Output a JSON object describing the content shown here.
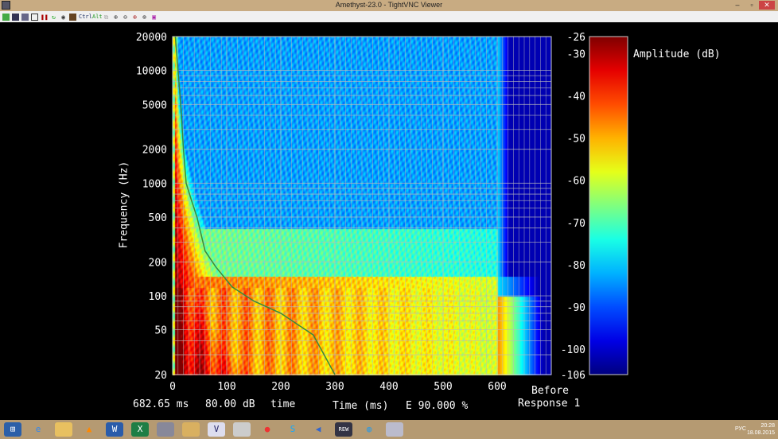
{
  "window": {
    "title": "Amethyst-23.0 - TightVNC Viewer",
    "minimize": "–",
    "maximize": "▫",
    "close": "✕"
  },
  "toolbar": {
    "icons": [
      "new-connection-icon",
      "save-icon",
      "options-icon",
      "info-icon",
      "pause-icon",
      "refresh-icon",
      "fullscreen-icon",
      "transfer-icon",
      "ctrl-key",
      "alt-key",
      "ctrl-alt-del-icon",
      "zoom-in-icon",
      "zoom-out-icon",
      "zoom-fit-icon",
      "zoom-100-icon",
      "scale-icon"
    ],
    "ctrl": "Ctrl",
    "alt": "Alt"
  },
  "status": {
    "cursor_time": "682.65 ms",
    "cursor_level": "80.00 dB",
    "mode": "time",
    "energy": "E 90.000 %",
    "view": "Before",
    "response": "Response 1"
  },
  "chart_data": {
    "type": "heatmap",
    "title": "",
    "xlabel": "Time (ms)",
    "ylabel": "Frequency (Hz)",
    "xlim": [
      0,
      700
    ],
    "ylim": [
      20,
      20000
    ],
    "yscale": "log",
    "xticks": [
      0,
      100,
      200,
      300,
      400,
      500,
      600
    ],
    "yticks": [
      20,
      50,
      100,
      200,
      500,
      1000,
      2000,
      5000,
      10000,
      20000
    ],
    "colorbar": {
      "label": "Amplitude (dB)",
      "range": [
        -106,
        -26
      ],
      "ticks": [
        -26,
        -30,
        -40,
        -50,
        -60,
        -70,
        -80,
        -90,
        -100,
        -106
      ]
    },
    "grid": true,
    "decay_curve": {
      "x": [
        5,
        10,
        15,
        20,
        25,
        35,
        45,
        60,
        80,
        110,
        150,
        200,
        260,
        300
      ],
      "y": [
        20000,
        10000,
        5000,
        2000,
        1000,
        700,
        500,
        250,
        180,
        120,
        90,
        70,
        45,
        20
      ]
    },
    "cutoff_time_ms": 600
  },
  "taskbar": {
    "lang": "РУС",
    "time": "20:28",
    "date": "18.08.2015"
  }
}
